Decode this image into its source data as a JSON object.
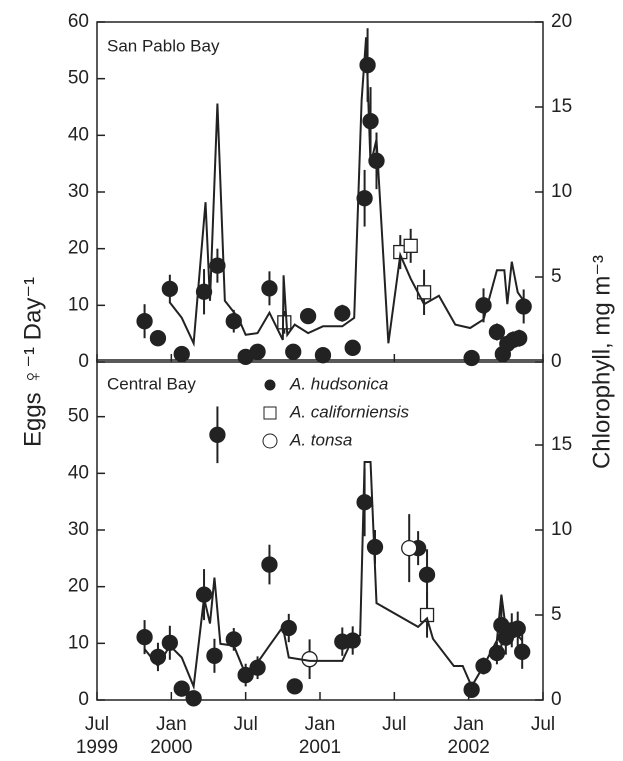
{
  "chart_data": [
    {
      "type": "scatter",
      "title": "San Pablo Bay",
      "y_label": "Eggs ♀⁻¹ Day⁻¹",
      "y2_label": "Chlorophyll, mg m⁻³",
      "xlim": [
        1999.5,
        2002.5
      ],
      "ylim": [
        0,
        60
      ],
      "yticks": [
        0,
        10,
        20,
        30,
        40,
        50,
        60
      ],
      "y2lim": [
        0,
        20
      ],
      "y2ticks": [
        0,
        5,
        10,
        15,
        20
      ],
      "series": [
        {
          "name": "A. hudsonica",
          "marker": "circle",
          "color": "#222",
          "fill": "#222",
          "x": [
            1999.82,
            1999.91,
            1999.99,
            2000.07,
            2000.22,
            2000.31,
            2000.42,
            2000.5,
            2000.58,
            2000.66,
            2000.82,
            2000.92,
            2001.02,
            2001.15,
            2001.22,
            2001.3,
            2001.32,
            2001.34,
            2001.38,
            2002.02,
            2002.1,
            2002.19,
            2002.23,
            2002.26,
            2002.3,
            2002.34,
            2002.37
          ],
          "values": [
            7.2,
            4.2,
            12.9,
            1.4,
            12.4,
            17,
            7.2,
            0.9,
            1.8,
            13,
            1.8,
            8.1,
            1.2,
            8.6,
            2.5,
            28.9,
            52.4,
            42.5,
            35.5,
            0.7,
            10,
            5.3,
            1.4,
            3.2,
            3.9,
            4.2,
            9.8
          ],
          "errors": [
            3,
            1,
            2.5,
            0,
            4,
            3,
            2,
            0,
            0,
            3,
            0,
            1,
            0,
            1.5,
            0,
            5,
            6.5,
            6,
            5,
            0,
            3,
            1.5,
            0,
            0,
            1.5,
            1.5,
            3
          ]
        },
        {
          "name": "A. californiensis",
          "marker": "square",
          "color": "#222",
          "fill": "#fff",
          "x": [
            2000.76,
            2001.54,
            2001.61,
            2001.7
          ],
          "values": [
            7,
            19.4,
            20.5,
            12.3
          ],
          "errors": [
            2,
            3,
            3,
            4
          ]
        },
        {
          "name": "Chlorophyll",
          "marker": "line",
          "color": "#222",
          "axis": "y2",
          "x": [
            1999.99,
            2000.07,
            2000.15,
            2000.23,
            2000.26,
            2000.31,
            2000.36,
            2000.45,
            2000.5,
            2000.58,
            2000.66,
            2000.75,
            2000.755,
            2000.78,
            2000.83,
            2000.92,
            2001.02,
            2001.15,
            2001.23,
            2001.28,
            2001.31,
            2001.34,
            2001.38,
            2001.46,
            2001.54,
            2001.61,
            2001.7,
            2001.8,
            2001.91,
            2002.01,
            2002.1,
            2002.19,
            2002.24,
            2002.26,
            2002.29,
            2002.33,
            2002.37
          ],
          "values": [
            3.5,
            2.6,
            1.1,
            9.4,
            3.6,
            15.2,
            3.6,
            2.6,
            1.6,
            1.7,
            2.9,
            1.3,
            5.1,
            1.6,
            2.2,
            1.7,
            2.1,
            2.1,
            2.6,
            15.4,
            19.1,
            11.6,
            13.1,
            1.1,
            6.3,
            4.9,
            3.4,
            3.9,
            2.2,
            2,
            2.5,
            5.4,
            5.4,
            3.4,
            5.9,
            4.1,
            3.6
          ]
        }
      ]
    },
    {
      "type": "scatter",
      "title": "Central Bay",
      "legend": "upper center",
      "xlim": [
        1999.5,
        2002.5
      ],
      "xticks": [
        {
          "value": 1999.5,
          "label": "Jul 1999"
        },
        {
          "value": 2000,
          "label": "Jan 2000"
        },
        {
          "value": 2000.5,
          "label": "Jul"
        },
        {
          "value": 2001,
          "label": "Jan 2001"
        },
        {
          "value": 2001.5,
          "label": "Jul"
        },
        {
          "value": 2002,
          "label": "Jan 2002"
        },
        {
          "value": 2002.5,
          "label": "Jul"
        }
      ],
      "ylim": [
        0,
        60
      ],
      "yticks": [
        0,
        10,
        20,
        30,
        40,
        50
      ],
      "y2lim": [
        0,
        20
      ],
      "y2ticks": [
        0,
        5,
        10,
        15
      ],
      "series": [
        {
          "name": "A. hudsonica",
          "marker": "circle",
          "color": "#222",
          "fill": "#222",
          "x": [
            1999.82,
            1999.91,
            1999.99,
            2000.07,
            2000.15,
            2000.22,
            2000.29,
            2000.31,
            2000.42,
            2000.5,
            2000.58,
            2000.66,
            2000.79,
            2000.83,
            2001.15,
            2001.22,
            2001.3,
            2001.37,
            2001.66,
            2001.72,
            2002.02,
            2002.1,
            2002.19,
            2002.22,
            2002.25,
            2002.29,
            2002.33,
            2002.36
          ],
          "values": [
            11.1,
            7.6,
            10.1,
            2,
            0.3,
            18.6,
            7.8,
            46.8,
            10.7,
            4.4,
            5.7,
            23.9,
            12.7,
            2.4,
            10.3,
            10.5,
            34.9,
            27,
            26.8,
            22.1,
            1.8,
            6,
            8.3,
            13.2,
            11,
            12.3,
            12.6,
            8.5
          ],
          "errors": [
            3,
            2.5,
            3,
            0,
            0,
            4.5,
            3,
            5,
            2,
            2,
            2,
            3.5,
            2.5,
            0,
            2.5,
            2.5,
            6,
            3,
            3,
            4.5,
            0,
            1.5,
            2,
            4.5,
            3,
            3,
            3,
            3
          ]
        },
        {
          "name": "A. californiensis",
          "marker": "square",
          "color": "#222",
          "fill": "#fff",
          "x": [
            2001.72
          ],
          "values": [
            15
          ],
          "errors": [
            4
          ]
        },
        {
          "name": "A. tonsa",
          "marker": "circle",
          "color": "#222",
          "fill": "#fff",
          "x": [
            2000.93,
            2001.6
          ],
          "values": [
            7.2,
            26.8
          ],
          "errors": [
            3.5,
            6
          ]
        },
        {
          "name": "Chlorophyll",
          "marker": "line",
          "color": "#222",
          "axis": "y2",
          "x": [
            1999.82,
            1999.91,
            1999.99,
            2000.07,
            2000.15,
            2000.22,
            2000.26,
            2000.29,
            2000.33,
            2000.42,
            2000.5,
            2000.58,
            2000.66,
            2000.75,
            2000.79,
            2000.93,
            2001,
            2001.15,
            2001.22,
            2001.27,
            2001.3,
            2001.34,
            2001.38,
            2001.66,
            2001.72,
            2001.76,
            2001.9,
            2001.96,
            2002.02,
            2002.1,
            2002.19,
            2002.22,
            2002.25,
            2002.29,
            2002.33,
            2002.36
          ],
          "values": [
            3,
            2,
            3.2,
            2.5,
            0.8,
            6,
            4.5,
            7.2,
            3.3,
            3.2,
            1.5,
            2.2,
            3.2,
            4.3,
            2.5,
            2.3,
            2.3,
            2.3,
            3.6,
            3.8,
            14,
            14,
            5.7,
            4.3,
            4.8,
            3.6,
            2,
            2,
            0.8,
            2,
            3.5,
            6.2,
            4.2,
            4.5,
            3.8,
            3.5
          ]
        }
      ]
    }
  ]
}
